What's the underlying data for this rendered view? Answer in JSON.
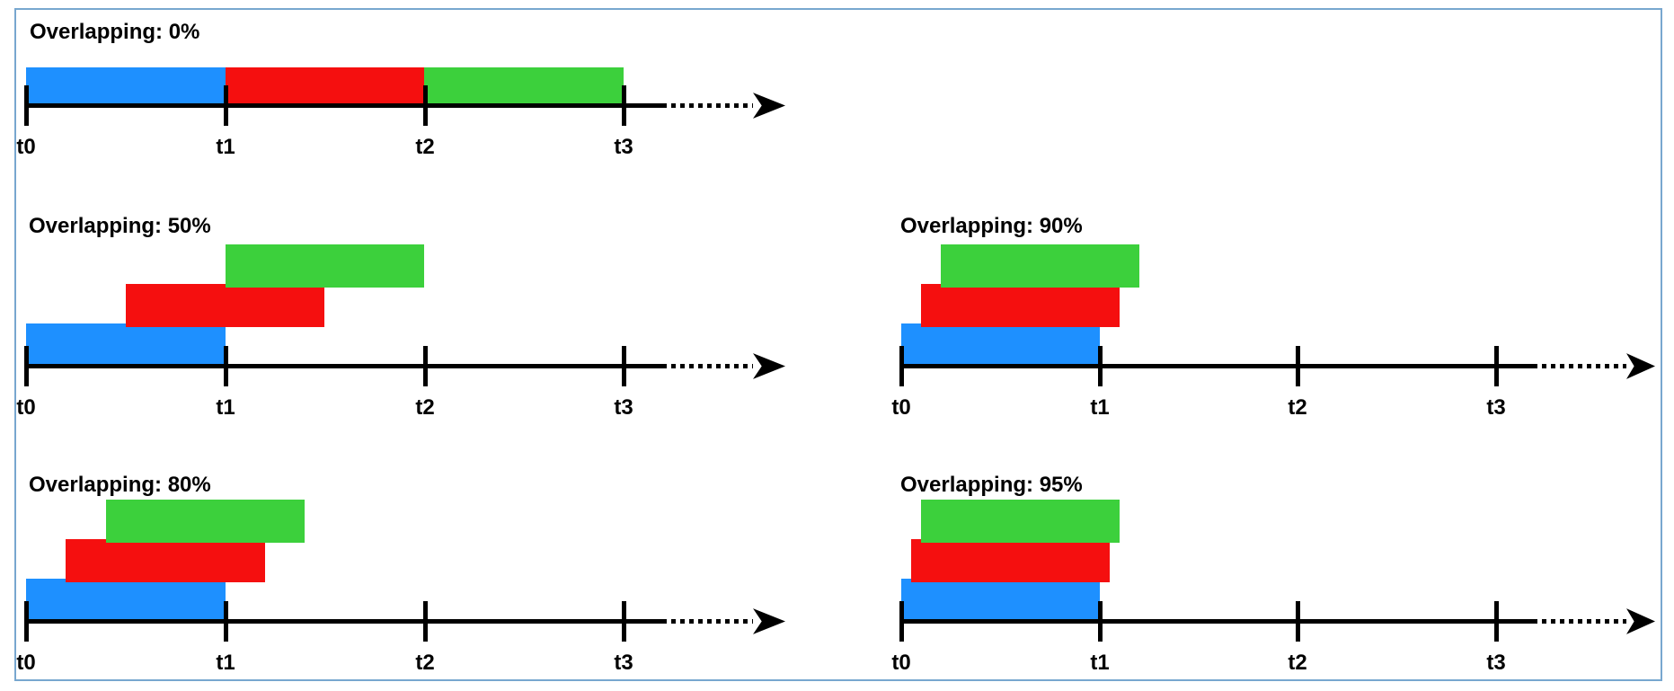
{
  "figure": {
    "background": "#FFFFFF",
    "border_color": "#78A7CF",
    "axis_color": "#000000",
    "text_color": "#000000",
    "tick_labels": [
      "t0",
      "t1",
      "t2",
      "t3"
    ],
    "bar_colors": {
      "blue": "#1E90FF",
      "red": "#F50F0F",
      "green": "#3CD03C"
    },
    "panels": [
      {
        "id": "overlap-0",
        "title": "Overlapping: 0%",
        "overlap_percent": 0,
        "bars": [
          {
            "color": "blue",
            "start": 0,
            "end": 1,
            "layer": 0
          },
          {
            "color": "red",
            "start": 1,
            "end": 2,
            "layer": 0
          },
          {
            "color": "green",
            "start": 2,
            "end": 3,
            "layer": 0
          }
        ]
      },
      {
        "id": "overlap-50",
        "title": "Overlapping: 50%",
        "overlap_percent": 50,
        "bars": [
          {
            "color": "blue",
            "start": 0,
            "end": 1,
            "layer": 0
          },
          {
            "color": "red",
            "start": 0.5,
            "end": 1.5,
            "layer": 1
          },
          {
            "color": "green",
            "start": 1,
            "end": 2,
            "layer": 2
          }
        ]
      },
      {
        "id": "overlap-90",
        "title": "Overlapping: 90%",
        "overlap_percent": 90,
        "bars": [
          {
            "color": "blue",
            "start": 0,
            "end": 1,
            "layer": 0
          },
          {
            "color": "red",
            "start": 0.1,
            "end": 1.1,
            "layer": 1
          },
          {
            "color": "green",
            "start": 0.2,
            "end": 1.2,
            "layer": 2
          }
        ]
      },
      {
        "id": "overlap-80",
        "title": "Overlapping: 80%",
        "overlap_percent": 80,
        "bars": [
          {
            "color": "blue",
            "start": 0,
            "end": 1,
            "layer": 0
          },
          {
            "color": "red",
            "start": 0.2,
            "end": 1.2,
            "layer": 1
          },
          {
            "color": "green",
            "start": 0.4,
            "end": 1.4,
            "layer": 2
          }
        ]
      },
      {
        "id": "overlap-95",
        "title": "Overlapping: 95%",
        "overlap_percent": 95,
        "bars": [
          {
            "color": "blue",
            "start": 0,
            "end": 1,
            "layer": 0
          },
          {
            "color": "red",
            "start": 0.05,
            "end": 1.05,
            "layer": 1
          },
          {
            "color": "green",
            "start": 0.1,
            "end": 1.1,
            "layer": 2
          }
        ]
      }
    ]
  }
}
